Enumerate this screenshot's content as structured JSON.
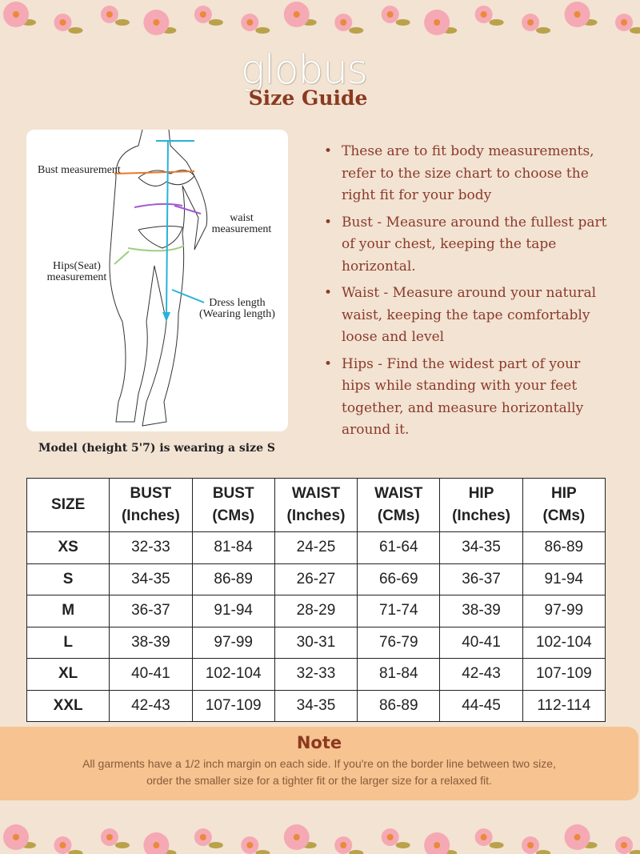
{
  "brand": {
    "logo": "globus",
    "title": "Size Guide"
  },
  "figure": {
    "labels": {
      "bust": "Bust measurement",
      "waist": "waist measurement",
      "hips": "Hips(Seat) measurement",
      "dress_1": "Dress length",
      "dress_2": "(Wearing length)"
    },
    "caption": "Model (height 5'7) is wearing a size S",
    "colors": {
      "bust": "#e87a2a",
      "waist": "#a05ad0",
      "hips": "#9ccf80",
      "length": "#27b3d8"
    }
  },
  "instructions": [
    "These are to fit body measurements, refer to the size chart to choose the right fit for your body",
    "Bust - Measure around the fullest part of your chest, keeping the tape horizontal.",
    "Waist - Measure around your natural waist, keeping the tape comfortably loose and level",
    "Hips - Find the widest part of your hips while standing with your feet together, and measure horizontally around it."
  ],
  "table": {
    "headers": [
      [
        "SIZE",
        ""
      ],
      [
        "BUST",
        "(Inches)"
      ],
      [
        "BUST",
        "(CMs)"
      ],
      [
        "WAIST",
        "(Inches)"
      ],
      [
        "WAIST",
        "(CMs)"
      ],
      [
        "HIP",
        "(Inches)"
      ],
      [
        "HIP",
        "(CMs)"
      ]
    ],
    "rows": [
      [
        "XS",
        "32-33",
        "81-84",
        "24-25",
        "61-64",
        "34-35",
        "86-89"
      ],
      [
        "S",
        "34-35",
        "86-89",
        "26-27",
        "66-69",
        "36-37",
        "91-94"
      ],
      [
        "M",
        "36-37",
        "91-94",
        "28-29",
        "71-74",
        "38-39",
        "97-99"
      ],
      [
        "L",
        "38-39",
        "97-99",
        "30-31",
        "76-79",
        "40-41",
        "102-104"
      ],
      [
        "XL",
        "40-41",
        "102-104",
        "32-33",
        "81-84",
        "42-43",
        "107-109"
      ],
      [
        "XXL",
        "42-43",
        "107-109",
        "34-35",
        "86-89",
        "44-45",
        "112-114"
      ]
    ]
  },
  "note": {
    "title": "Note",
    "text": "All garments have a 1/2 inch margin on each side. If you're on the border line between two size, order the smaller size for a tighter fit or the larger size for a relaxed fit."
  },
  "colors": {
    "background": "#f2e3d3",
    "accent": "#8b3a1f",
    "note_bg": "#f6c391"
  }
}
